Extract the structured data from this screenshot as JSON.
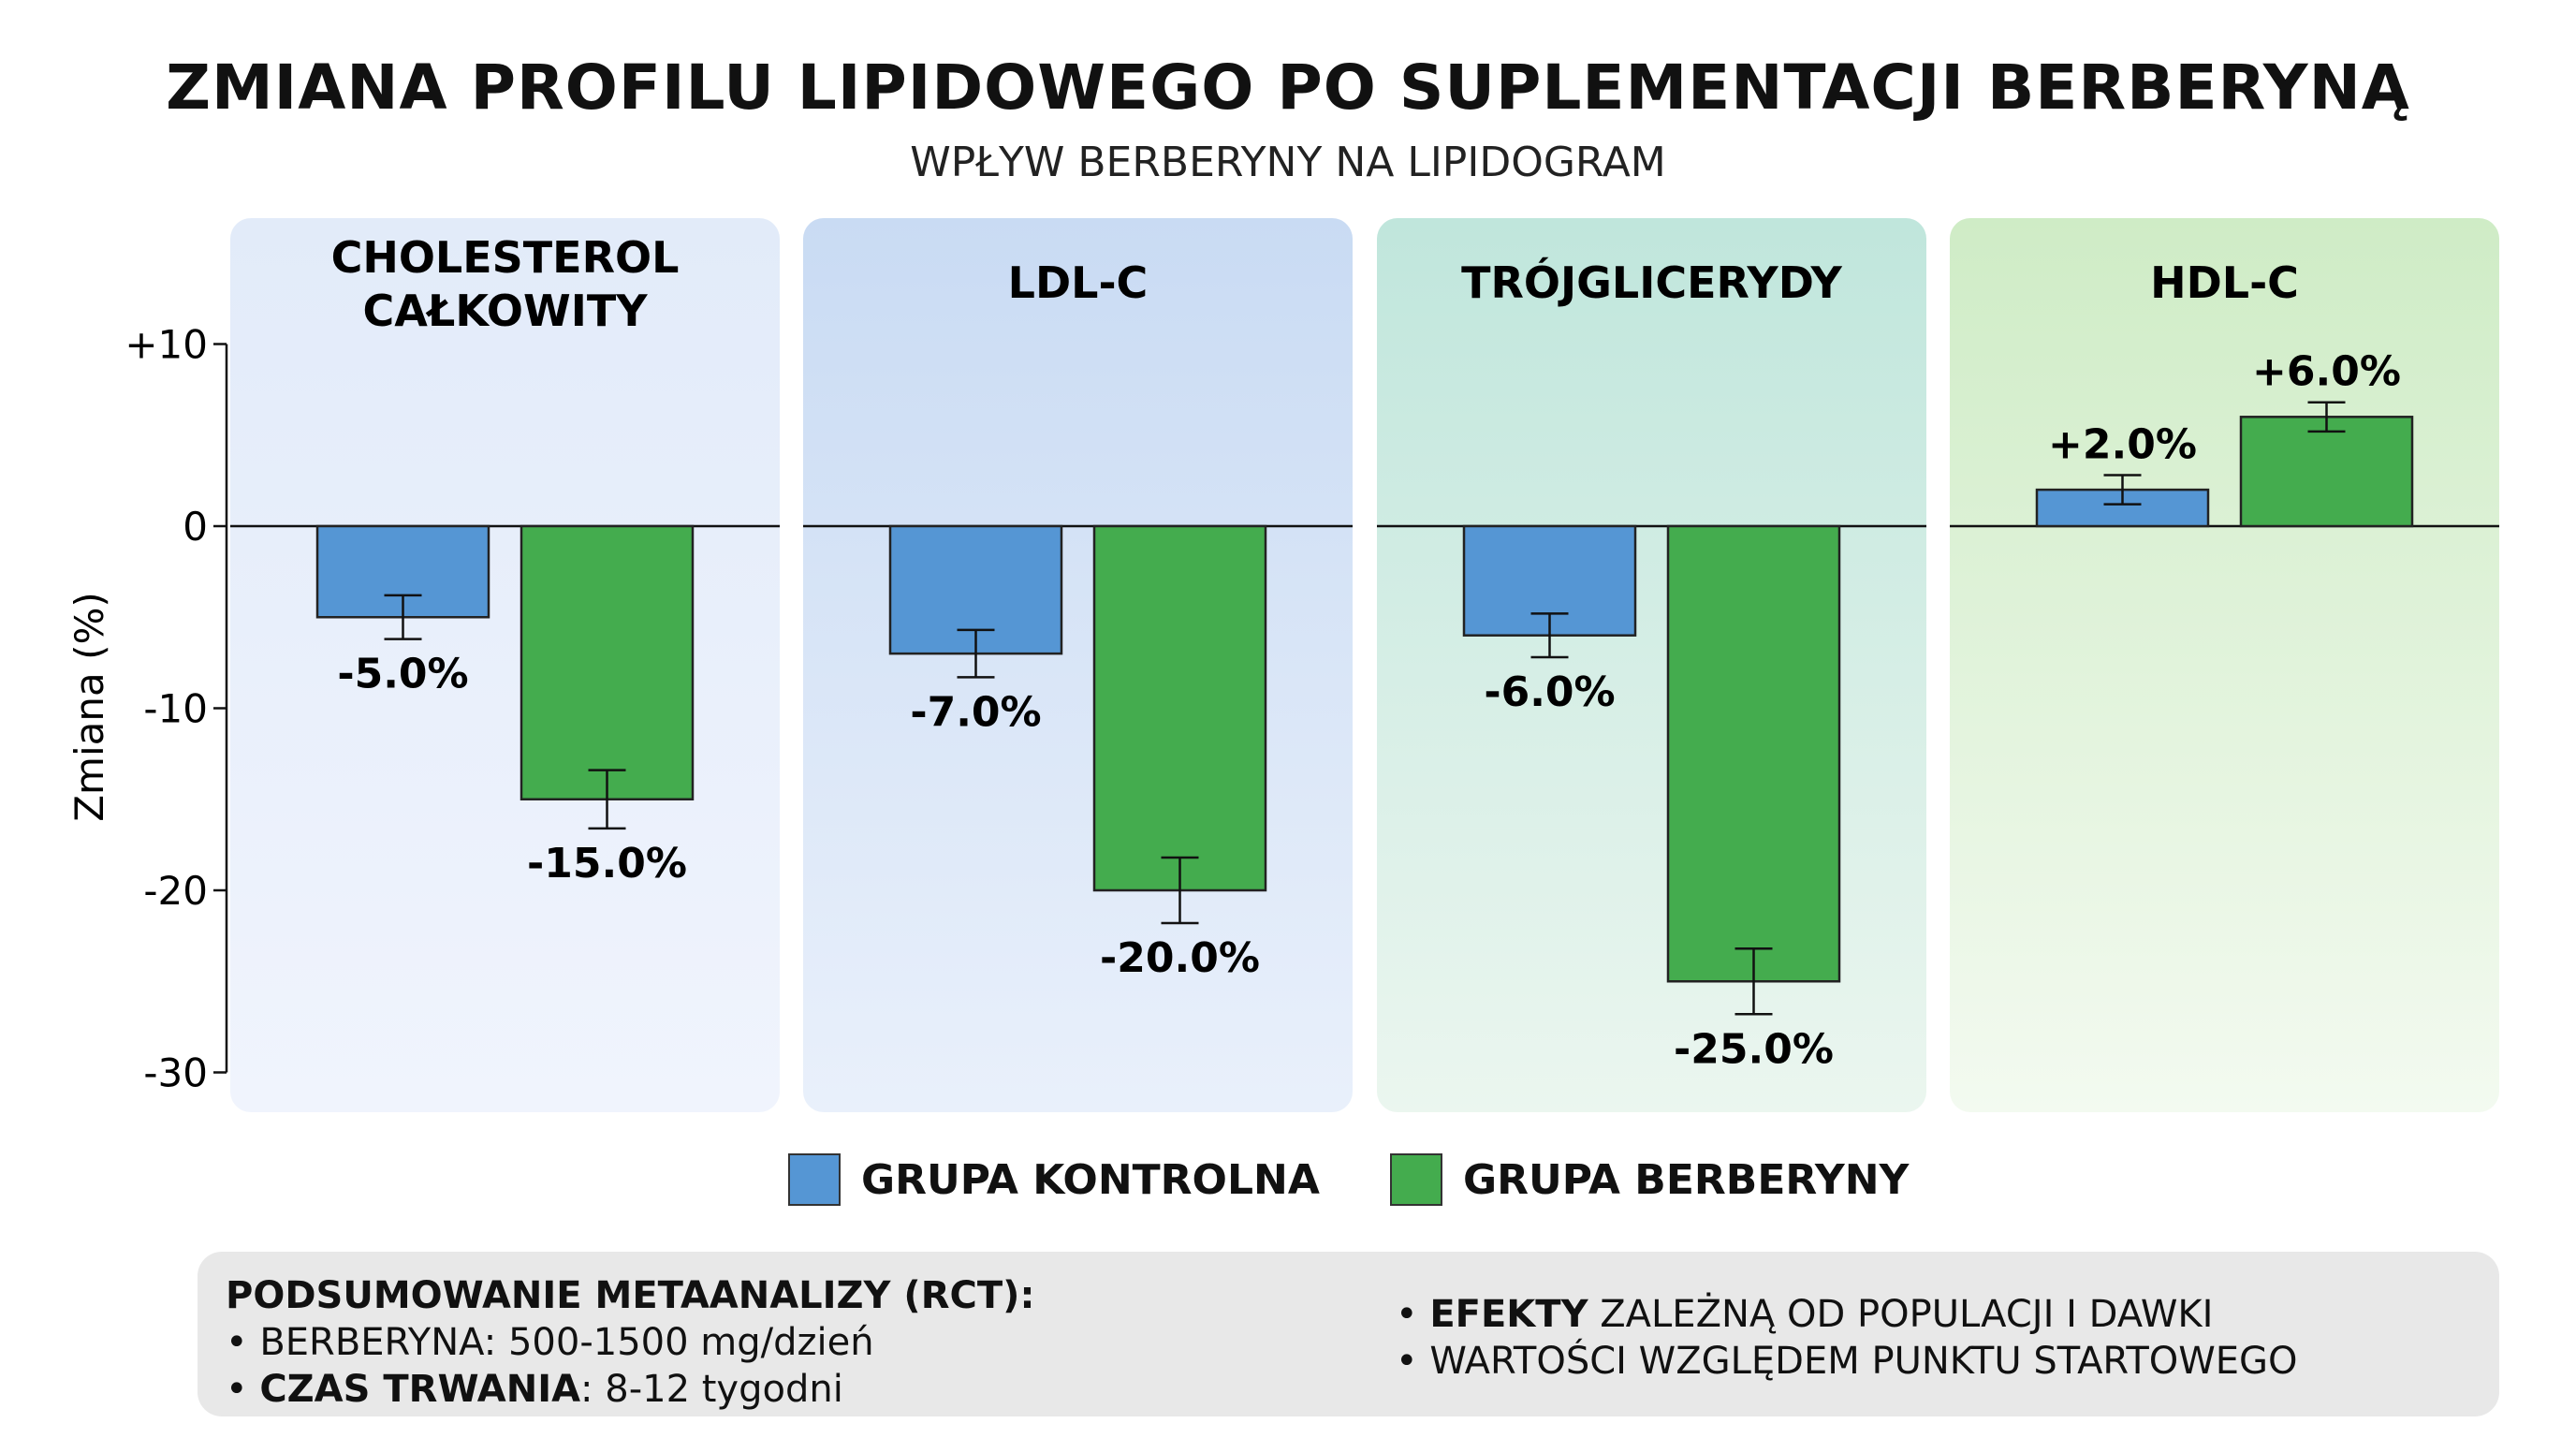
{
  "header": {
    "title": "ZMIANA PROFILU LIPIDOWEGO PO SUPLEMENTACJI BERBERYNĄ",
    "subtitle": "WPŁYW BERBERYNY NA LIPIDOGRAM"
  },
  "chart_data": {
    "type": "bar",
    "ylabel": "Zmiana (%)",
    "ylim": [
      -30,
      10
    ],
    "yticks": [
      {
        "v": 10,
        "label": "+10"
      },
      {
        "v": 0,
        "label": "0"
      },
      {
        "v": -10,
        "label": "-10"
      },
      {
        "v": -20,
        "label": "-20"
      },
      {
        "v": -30,
        "label": "-30"
      }
    ],
    "categories": [
      {
        "title_lines": [
          "CHOLESTEROL",
          "CAŁKOWITY"
        ],
        "bg": [
          "#e2ebf9",
          "#f0f4fd"
        ]
      },
      {
        "title_lines": [
          "LDL-C"
        ],
        "bg": [
          "#c9dbf3",
          "#e9f0fb"
        ]
      },
      {
        "title_lines": [
          "TRÓJGLICERYDY"
        ],
        "bg": [
          "#c0e6dc",
          "#ebf6ef"
        ]
      },
      {
        "title_lines": [
          "HDL-C"
        ],
        "bg": [
          "#cfecc6",
          "#f3faf0"
        ]
      }
    ],
    "series": [
      {
        "name": "GRUPA KONTROLNA",
        "color": "#5596d4",
        "values": [
          -5,
          -7,
          -6,
          2
        ],
        "errors": [
          1.2,
          1.3,
          1.2,
          0.8
        ],
        "labels": [
          "-5.0%",
          "-7.0%",
          "-6.0%",
          "+2.0%"
        ]
      },
      {
        "name": "GRUPA BERBERYNY",
        "color": "#44ac4e",
        "values": [
          -15,
          -20,
          -25,
          6
        ],
        "errors": [
          1.6,
          1.8,
          1.8,
          0.8
        ],
        "labels": [
          "-15.0%",
          "-20.0%",
          "-25.0%",
          "+6.0%"
        ]
      }
    ],
    "legend": "bottom-center",
    "grid": false
  },
  "summary": {
    "heading": "PODSUMOWANIE METAANALIZY (RCT):",
    "left": [
      {
        "bold": "",
        "text": "BERBERYNA: 500-1500 mg/dzień"
      },
      {
        "bold": "CZAS TRWANIA",
        "text": ": 8-12 tygodni"
      }
    ],
    "right": [
      {
        "bold": "EFEKTY",
        "text": " ZALEŻNĄ OD POPULACJI I DAWKI"
      },
      {
        "bold": "",
        "text": "WARTOŚCI WZGLĘDEM PUNKTU STARTOWEGO"
      }
    ],
    "bullet": "•"
  }
}
